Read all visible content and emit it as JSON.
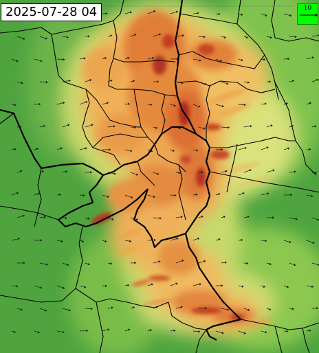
{
  "map": {
    "timestamp": "2025-07-28 04",
    "legend_vector": {
      "label": "10",
      "color": "#00ff00"
    },
    "colors": {
      "low": "#3f9a3a",
      "mid_low": "#7cbf4a",
      "mid": "#d6e07a",
      "mid_high": "#f0b45a",
      "high": "#d96a2c",
      "peak": "#b02418",
      "border": "#000000",
      "arrow": "#1a1a1a"
    },
    "layers": [
      "field-fill",
      "wind-vectors",
      "admin-borders"
    ]
  }
}
